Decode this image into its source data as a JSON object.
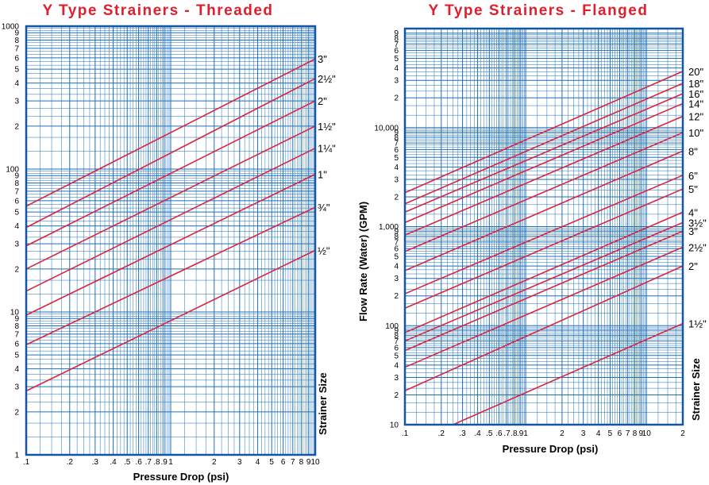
{
  "colors": {
    "grid": "#1d6fb8",
    "frame": "#1556a0",
    "curve": "#d7263d",
    "title": "#e01e2d"
  },
  "chart_data": [
    {
      "type": "line",
      "title": "Y Type Strainers - Threaded",
      "xlabel": "Pressure Drop (psi)",
      "ylabel": "",
      "side_label": "Strainer Size",
      "x_scale": "log",
      "y_scale": "log",
      "xlim": [
        0.1,
        10
      ],
      "ylim": [
        1,
        1000
      ],
      "x_tick_labels": [
        {
          "v": 0.1,
          "t": ".1"
        },
        {
          "v": 0.2,
          "t": ".2"
        },
        {
          "v": 0.3,
          "t": ".3"
        },
        {
          "v": 0.4,
          "t": ".4"
        },
        {
          "v": 0.5,
          "t": ".5"
        },
        {
          "v": 0.6,
          "t": ".6"
        },
        {
          "v": 0.7,
          "t": ".7"
        },
        {
          "v": 0.8,
          "t": ".8"
        },
        {
          "v": 0.9,
          "t": ".9"
        },
        {
          "v": 1,
          "t": "1"
        },
        {
          "v": 2,
          "t": "2"
        },
        {
          "v": 3,
          "t": "3"
        },
        {
          "v": 4,
          "t": "4"
        },
        {
          "v": 5,
          "t": "5"
        },
        {
          "v": 6,
          "t": "6"
        },
        {
          "v": 7,
          "t": "7"
        },
        {
          "v": 8,
          "t": "8"
        },
        {
          "v": 9,
          "t": "9"
        },
        {
          "v": 10,
          "t": "10"
        }
      ],
      "y_tick_labels": [
        {
          "v": 1,
          "t": "1"
        },
        {
          "v": 2,
          "t": "2"
        },
        {
          "v": 3,
          "t": "3"
        },
        {
          "v": 4,
          "t": "4"
        },
        {
          "v": 5,
          "t": "5"
        },
        {
          "v": 6,
          "t": "6"
        },
        {
          "v": 7,
          "t": "7"
        },
        {
          "v": 8,
          "t": "8"
        },
        {
          "v": 9,
          "t": "9"
        },
        {
          "v": 10,
          "t": "10"
        },
        {
          "v": 20,
          "t": "2"
        },
        {
          "v": 30,
          "t": "3"
        },
        {
          "v": 40,
          "t": "4"
        },
        {
          "v": 50,
          "t": "5"
        },
        {
          "v": 60,
          "t": "6"
        },
        {
          "v": 70,
          "t": "7"
        },
        {
          "v": 80,
          "t": "8"
        },
        {
          "v": 90,
          "t": "9"
        },
        {
          "v": 100,
          "t": "100"
        },
        {
          "v": 200,
          "t": "2"
        },
        {
          "v": 300,
          "t": "3"
        },
        {
          "v": 400,
          "t": "4"
        },
        {
          "v": 500,
          "t": "5"
        },
        {
          "v": 600,
          "t": "6"
        },
        {
          "v": 700,
          "t": "7"
        },
        {
          "v": 800,
          "t": "8"
        },
        {
          "v": 900,
          "t": "9"
        },
        {
          "v": 1000,
          "t": "1000"
        }
      ],
      "series": [
        {
          "name": "3\"",
          "x": [
            0.1,
            10
          ],
          "y": [
            55,
            590
          ]
        },
        {
          "name": "2½\"",
          "x": [
            0.1,
            10
          ],
          "y": [
            39,
            430
          ]
        },
        {
          "name": "2\"",
          "x": [
            0.1,
            10
          ],
          "y": [
            29,
            300
          ]
        },
        {
          "name": "1½\"",
          "x": [
            0.1,
            10
          ],
          "y": [
            20,
            200
          ]
        },
        {
          "name": "1¼\"",
          "x": [
            0.1,
            10
          ],
          "y": [
            14,
            140
          ]
        },
        {
          "name": "1\"",
          "x": [
            0.1,
            10
          ],
          "y": [
            9.5,
            92
          ]
        },
        {
          "name": "¾\"",
          "x": [
            0.1,
            10
          ],
          "y": [
            5.9,
            54
          ]
        },
        {
          "name": "½\"",
          "x": [
            0.1,
            10
          ],
          "y": [
            2.8,
            27
          ]
        }
      ]
    },
    {
      "type": "line",
      "title": "Y Type Strainers - Flanged",
      "xlabel": "Pressure Drop (psi)",
      "ylabel": "Flow Rate (Water) (GPM)",
      "side_label": "Strainer Size",
      "x_scale": "log",
      "y_scale": "log",
      "xlim": [
        0.1,
        20
      ],
      "ylim": [
        10,
        100000
      ],
      "x_tick_labels": [
        {
          "v": 0.1,
          "t": ".1"
        },
        {
          "v": 0.2,
          "t": ".2"
        },
        {
          "v": 0.3,
          "t": ".3"
        },
        {
          "v": 0.4,
          "t": ".4"
        },
        {
          "v": 0.5,
          "t": ".5"
        },
        {
          "v": 0.6,
          "t": ".6"
        },
        {
          "v": 0.7,
          "t": ".7"
        },
        {
          "v": 0.8,
          "t": ".8"
        },
        {
          "v": 0.9,
          "t": ".9"
        },
        {
          "v": 1,
          "t": "1"
        },
        {
          "v": 2,
          "t": "2"
        },
        {
          "v": 3,
          "t": "3"
        },
        {
          "v": 4,
          "t": "4"
        },
        {
          "v": 5,
          "t": "5"
        },
        {
          "v": 6,
          "t": "6"
        },
        {
          "v": 7,
          "t": "7"
        },
        {
          "v": 8,
          "t": "8"
        },
        {
          "v": 9,
          "t": "9"
        },
        {
          "v": 10,
          "t": "10"
        },
        {
          "v": 20,
          "t": "2"
        }
      ],
      "y_tick_labels": [
        {
          "v": 10,
          "t": "10"
        },
        {
          "v": 20,
          "t": "2"
        },
        {
          "v": 30,
          "t": "3"
        },
        {
          "v": 40,
          "t": "4"
        },
        {
          "v": 50,
          "t": "5"
        },
        {
          "v": 60,
          "t": "6"
        },
        {
          "v": 70,
          "t": "7"
        },
        {
          "v": 80,
          "t": "8"
        },
        {
          "v": 90,
          "t": "9"
        },
        {
          "v": 100,
          "t": "100"
        },
        {
          "v": 200,
          "t": "2"
        },
        {
          "v": 300,
          "t": "3"
        },
        {
          "v": 400,
          "t": "4"
        },
        {
          "v": 500,
          "t": "5"
        },
        {
          "v": 600,
          "t": "6"
        },
        {
          "v": 700,
          "t": "7"
        },
        {
          "v": 800,
          "t": "8"
        },
        {
          "v": 900,
          "t": "9"
        },
        {
          "v": 1000,
          "t": "1,000"
        },
        {
          "v": 2000,
          "t": "2"
        },
        {
          "v": 3000,
          "t": "3"
        },
        {
          "v": 4000,
          "t": "4"
        },
        {
          "v": 5000,
          "t": "5"
        },
        {
          "v": 6000,
          "t": "6"
        },
        {
          "v": 7000,
          "t": "7"
        },
        {
          "v": 8000,
          "t": "8"
        },
        {
          "v": 9000,
          "t": "9"
        },
        {
          "v": 10000,
          "t": "10,000"
        },
        {
          "v": 20000,
          "t": "2"
        },
        {
          "v": 30000,
          "t": "3"
        },
        {
          "v": 40000,
          "t": "4"
        },
        {
          "v": 50000,
          "t": "5"
        },
        {
          "v": 60000,
          "t": "6"
        },
        {
          "v": 70000,
          "t": "7"
        },
        {
          "v": 80000,
          "t": "8"
        },
        {
          "v": 90000,
          "t": "9"
        }
      ],
      "series": [
        {
          "name": "20\"",
          "x": [
            0.1,
            20
          ],
          "y": [
            2200,
            37000
          ]
        },
        {
          "name": "18\"",
          "x": [
            0.1,
            20
          ],
          "y": [
            1700,
            28000
          ]
        },
        {
          "name": "16\"",
          "x": [
            0.1,
            20
          ],
          "y": [
            1400,
            22000
          ]
        },
        {
          "name": "14\"",
          "x": [
            0.1,
            20
          ],
          "y": [
            1100,
            17500
          ]
        },
        {
          "name": "12\"",
          "x": [
            0.1,
            20
          ],
          "y": [
            820,
            13000
          ]
        },
        {
          "name": "10\"",
          "x": [
            0.1,
            20
          ],
          "y": [
            560,
            8900
          ]
        },
        {
          "name": "8\"",
          "x": [
            0.1,
            20
          ],
          "y": [
            360,
            5800
          ]
        },
        {
          "name": "6\"",
          "x": [
            0.1,
            20
          ],
          "y": [
            210,
            3300
          ]
        },
        {
          "name": "5\"",
          "x": [
            0.1,
            20
          ],
          "y": [
            150,
            2400
          ]
        },
        {
          "name": "4\"",
          "x": [
            0.1,
            20
          ],
          "y": [
            85,
            1400
          ]
        },
        {
          "name": "3½\"",
          "x": [
            0.1,
            20
          ],
          "y": [
            70,
            1100
          ]
        },
        {
          "name": "3\"",
          "x": [
            0.1,
            20
          ],
          "y": [
            56,
            900
          ]
        },
        {
          "name": "2½\"",
          "x": [
            0.1,
            20
          ],
          "y": [
            38,
            620
          ]
        },
        {
          "name": "2\"",
          "x": [
            0.1,
            20
          ],
          "y": [
            22,
            400
          ]
        },
        {
          "name": "1½\"",
          "x": [
            0.25,
            20
          ],
          "y": [
            10,
            105
          ]
        }
      ]
    }
  ]
}
